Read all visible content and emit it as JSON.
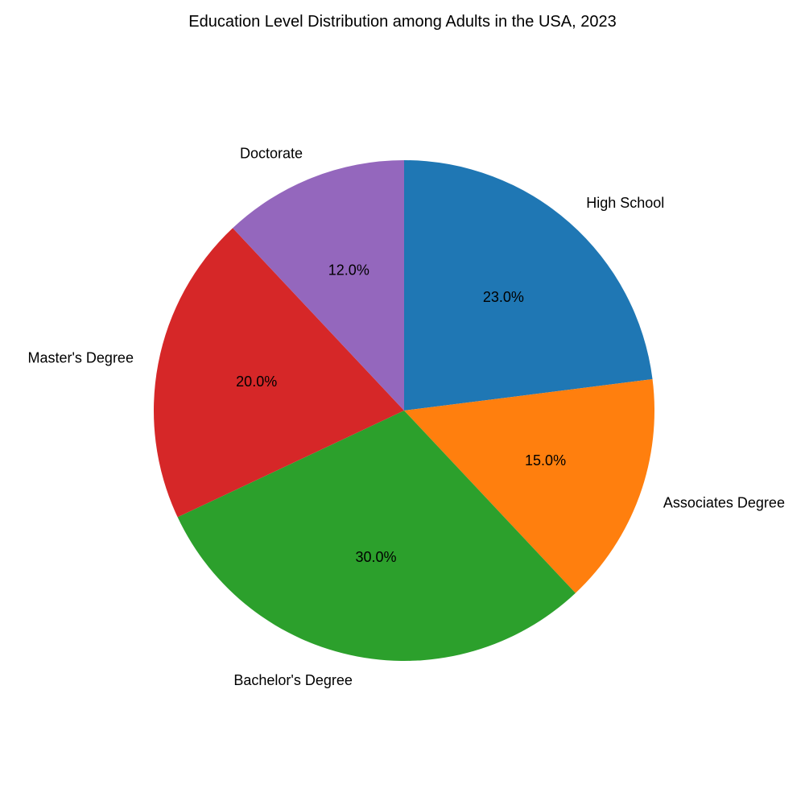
{
  "chart_data": {
    "type": "pie",
    "title": "Education Level Distribution among Adults in the USA, 2023",
    "categories": [
      "High School",
      "Associates Degree",
      "Bachelor's Degree",
      "Master's Degree",
      "Doctorate"
    ],
    "values": [
      23.0,
      15.0,
      30.0,
      20.0,
      12.0
    ],
    "percent_labels": [
      "23.0%",
      "15.0%",
      "30.0%",
      "20.0%",
      "12.0%"
    ],
    "colors": [
      "#1f77b4",
      "#ff7f0e",
      "#2ca02c",
      "#d62728",
      "#9467bd"
    ],
    "start_angle_deg": 90,
    "direction": "clockwise",
    "legend": "none"
  }
}
